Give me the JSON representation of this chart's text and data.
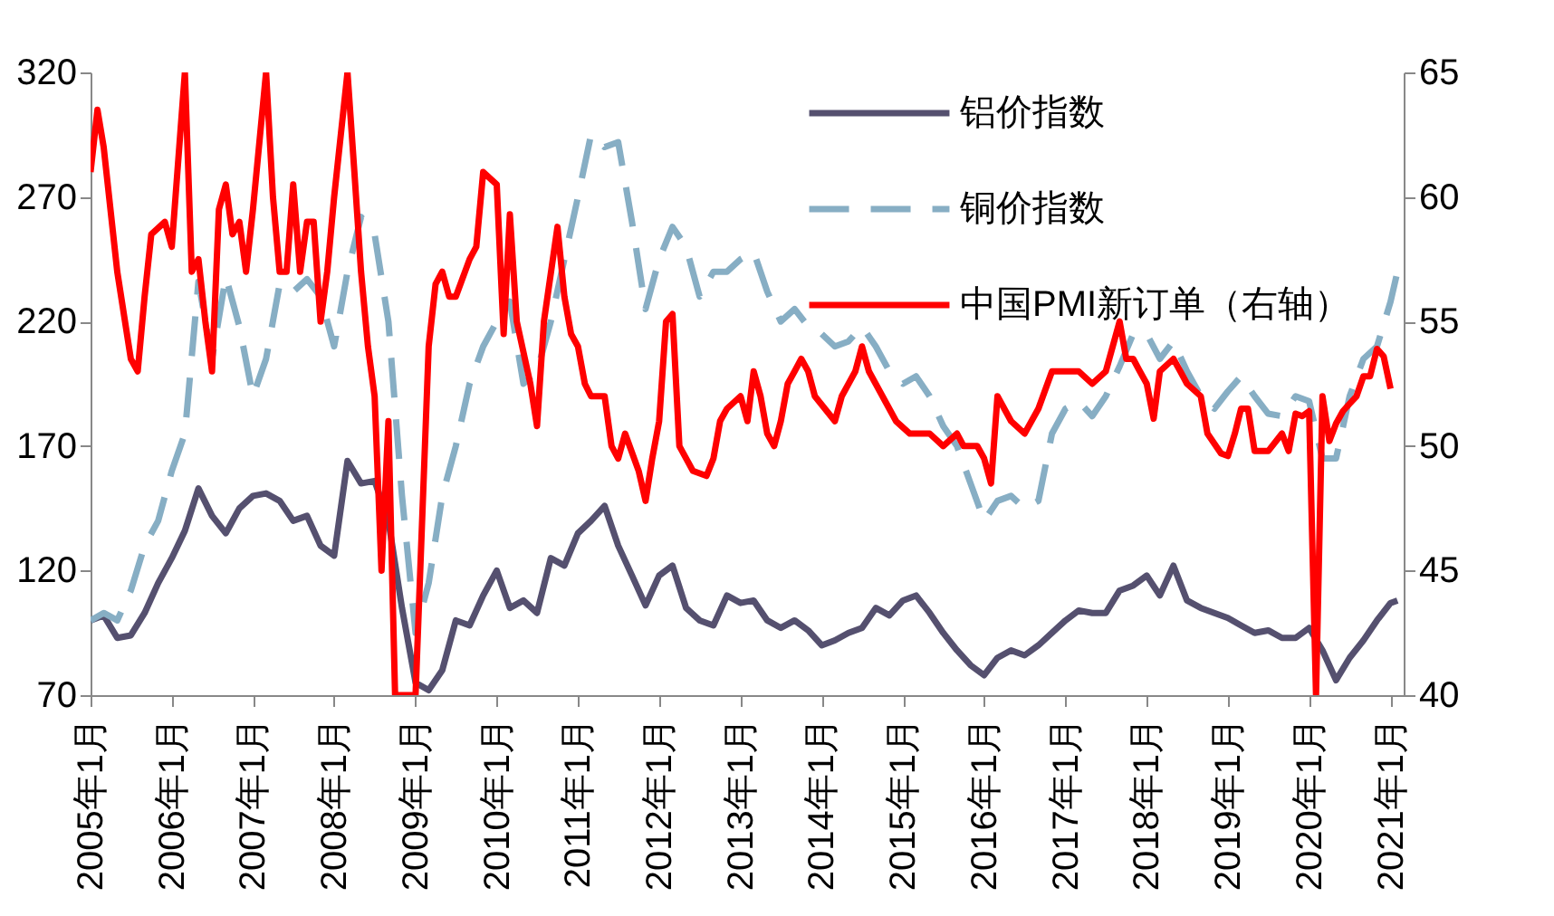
{
  "chart_data": {
    "type": "line",
    "xlim": [
      "2005-01",
      "2021-03"
    ],
    "xticks": [
      {
        "value": "2005-01",
        "label": "2005年1月"
      },
      {
        "value": "2006-01",
        "label": "2006年1月"
      },
      {
        "value": "2007-01",
        "label": "2007年1月"
      },
      {
        "value": "2008-01",
        "label": "2008年1月"
      },
      {
        "value": "2009-01",
        "label": "2009年1月"
      },
      {
        "value": "2010-01",
        "label": "2010年1月"
      },
      {
        "value": "2011-01",
        "label": "2011年1月"
      },
      {
        "value": "2012-01",
        "label": "2012年1月"
      },
      {
        "value": "2013-01",
        "label": "2013年1月"
      },
      {
        "value": "2014-01",
        "label": "2014年1月"
      },
      {
        "value": "2015-01",
        "label": "2015年1月"
      },
      {
        "value": "2016-01",
        "label": "2016年1月"
      },
      {
        "value": "2017-01",
        "label": "2017年1月"
      },
      {
        "value": "2018-01",
        "label": "2018年1月"
      },
      {
        "value": "2019-01",
        "label": "2019年1月"
      },
      {
        "value": "2020-01",
        "label": "2020年1月"
      },
      {
        "value": "2021-01",
        "label": "2021年1月"
      }
    ],
    "ylim": [
      70,
      320
    ],
    "yticks": [
      70,
      120,
      170,
      220,
      270,
      320
    ],
    "y2lim": [
      40,
      65
    ],
    "y2ticks": [
      40,
      45,
      50,
      55,
      60,
      65
    ],
    "legend": "top right",
    "grid": false,
    "series": [
      {
        "name": "铝价指数",
        "color": "#55506f",
        "line_style": "solid",
        "x": [
          "2005-01",
          "2005-03",
          "2005-05",
          "2005-07",
          "2005-09",
          "2005-11",
          "2006-01",
          "2006-03",
          "2006-05",
          "2006-07",
          "2006-09",
          "2006-11",
          "2007-01",
          "2007-03",
          "2007-05",
          "2007-07",
          "2007-09",
          "2007-11",
          "2008-01",
          "2008-03",
          "2008-05",
          "2008-07",
          "2008-09",
          "2008-11",
          "2009-01",
          "2009-03",
          "2009-05",
          "2009-07",
          "2009-09",
          "2009-11",
          "2010-01",
          "2010-03",
          "2010-05",
          "2010-07",
          "2010-09",
          "2010-11",
          "2011-01",
          "2011-03",
          "2011-05",
          "2011-07",
          "2011-09",
          "2011-11",
          "2012-01",
          "2012-03",
          "2012-05",
          "2012-07",
          "2012-09",
          "2012-11",
          "2013-01",
          "2013-03",
          "2013-05",
          "2013-07",
          "2013-09",
          "2013-11",
          "2014-01",
          "2014-03",
          "2014-05",
          "2014-07",
          "2014-09",
          "2014-11",
          "2015-01",
          "2015-03",
          "2015-05",
          "2015-07",
          "2015-09",
          "2015-11",
          "2016-01",
          "2016-03",
          "2016-05",
          "2016-07",
          "2016-09",
          "2016-11",
          "2017-01",
          "2017-03",
          "2017-05",
          "2017-07",
          "2017-09",
          "2017-11",
          "2018-01",
          "2018-03",
          "2018-05",
          "2018-07",
          "2018-09",
          "2018-11",
          "2019-01",
          "2019-03",
          "2019-05",
          "2019-07",
          "2019-09",
          "2019-11",
          "2020-01",
          "2020-03",
          "2020-05",
          "2020-07",
          "2020-09",
          "2020-11",
          "2021-01",
          "2021-02"
        ],
        "values": [
          100,
          102,
          93,
          94,
          103,
          115,
          125,
          136,
          153,
          142,
          135,
          145,
          150,
          151,
          148,
          140,
          142,
          130,
          126,
          164,
          155,
          156,
          140,
          105,
          75,
          72,
          80,
          100,
          98,
          110,
          120,
          105,
          108,
          103,
          125,
          122,
          135,
          140,
          146,
          130,
          118,
          106,
          118,
          122,
          105,
          100,
          98,
          110,
          107,
          108,
          100,
          97,
          100,
          96,
          90,
          92,
          95,
          97,
          105,
          102,
          108,
          110,
          103,
          95,
          88,
          82,
          78,
          85,
          88,
          86,
          90,
          95,
          100,
          104,
          103,
          103,
          112,
          114,
          118,
          110,
          122,
          108,
          105,
          103,
          101,
          98,
          95,
          96,
          93,
          93,
          97,
          88,
          76,
          85,
          92,
          100,
          107,
          108
        ]
      },
      {
        "name": "铜价指数",
        "color": "#87aec4",
        "line_style": "dashed",
        "x": [
          "2005-01",
          "2005-03",
          "2005-05",
          "2005-07",
          "2005-09",
          "2005-11",
          "2006-01",
          "2006-03",
          "2006-05",
          "2006-07",
          "2006-09",
          "2006-11",
          "2007-01",
          "2007-03",
          "2007-05",
          "2007-07",
          "2007-09",
          "2007-11",
          "2008-01",
          "2008-03",
          "2008-05",
          "2008-07",
          "2008-09",
          "2008-11",
          "2009-01",
          "2009-03",
          "2009-05",
          "2009-07",
          "2009-09",
          "2009-11",
          "2010-01",
          "2010-03",
          "2010-05",
          "2010-07",
          "2010-09",
          "2010-11",
          "2011-01",
          "2011-03",
          "2011-05",
          "2011-07",
          "2011-09",
          "2011-11",
          "2012-01",
          "2012-03",
          "2012-05",
          "2012-07",
          "2012-09",
          "2012-11",
          "2013-01",
          "2013-03",
          "2013-05",
          "2013-07",
          "2013-09",
          "2013-11",
          "2014-01",
          "2014-03",
          "2014-05",
          "2014-07",
          "2014-09",
          "2014-11",
          "2015-01",
          "2015-03",
          "2015-05",
          "2015-07",
          "2015-09",
          "2015-11",
          "2016-01",
          "2016-03",
          "2016-05",
          "2016-07",
          "2016-09",
          "2016-11",
          "2017-01",
          "2017-03",
          "2017-05",
          "2017-07",
          "2017-09",
          "2017-11",
          "2018-01",
          "2018-03",
          "2018-05",
          "2018-07",
          "2018-09",
          "2018-11",
          "2019-01",
          "2019-03",
          "2019-05",
          "2019-07",
          "2019-09",
          "2019-11",
          "2020-01",
          "2020-03",
          "2020-05",
          "2020-07",
          "2020-09",
          "2020-11",
          "2021-01",
          "2021-02"
        ],
        "values": [
          100,
          103,
          100,
          112,
          130,
          140,
          160,
          175,
          236,
          205,
          238,
          218,
          190,
          205,
          235,
          232,
          237,
          230,
          210,
          240,
          262,
          255,
          220,
          150,
          95,
          115,
          150,
          170,
          195,
          210,
          220,
          228,
          195,
          200,
          220,
          245,
          270,
          295,
          290,
          292,
          260,
          225,
          245,
          258,
          250,
          230,
          240,
          240,
          245,
          248,
          232,
          220,
          225,
          218,
          215,
          210,
          212,
          218,
          210,
          200,
          195,
          198,
          190,
          178,
          170,
          155,
          140,
          148,
          150,
          145,
          148,
          175,
          185,
          188,
          182,
          190,
          202,
          215,
          215,
          205,
          212,
          200,
          190,
          185,
          192,
          198,
          190,
          183,
          182,
          190,
          188,
          165,
          165,
          190,
          205,
          210,
          228,
          240
        ]
      },
      {
        "name": "中国PMI新订单（右轴）",
        "color": "#ff0000",
        "line_style": "solid",
        "axis": "y2",
        "x": [
          "2005-01",
          "2005-02",
          "2005-03",
          "2005-05",
          "2005-07",
          "2005-08",
          "2005-09",
          "2005-10",
          "2005-12",
          "2006-01",
          "2006-03",
          "2006-04",
          "2006-05",
          "2006-06",
          "2006-07",
          "2006-08",
          "2006-09",
          "2006-10",
          "2006-11",
          "2006-12",
          "2007-01",
          "2007-03",
          "2007-04",
          "2007-05",
          "2007-06",
          "2007-07",
          "2007-08",
          "2007-09",
          "2007-10",
          "2007-11",
          "2007-12",
          "2008-01",
          "2008-03",
          "2008-04",
          "2008-05",
          "2008-06",
          "2008-07",
          "2008-08",
          "2008-09",
          "2008-10",
          "2008-12",
          "2009-01",
          "2009-03",
          "2009-04",
          "2009-05",
          "2009-06",
          "2009-07",
          "2009-09",
          "2009-10",
          "2009-11",
          "2010-01",
          "2010-02",
          "2010-03",
          "2010-04",
          "2010-06",
          "2010-07",
          "2010-08",
          "2010-10",
          "2010-11",
          "2010-12",
          "2011-01",
          "2011-02",
          "2011-03",
          "2011-05",
          "2011-06",
          "2011-07",
          "2011-08",
          "2011-10",
          "2011-11",
          "2011-12",
          "2012-01",
          "2012-02",
          "2012-03",
          "2012-04",
          "2012-06",
          "2012-08",
          "2012-09",
          "2012-10",
          "2012-11",
          "2013-01",
          "2013-02",
          "2013-03",
          "2013-04",
          "2013-05",
          "2013-06",
          "2013-07",
          "2013-08",
          "2013-09",
          "2013-10",
          "2013-11",
          "2013-12",
          "2014-03",
          "2014-04",
          "2014-06",
          "2014-07",
          "2014-08",
          "2014-10",
          "2014-12",
          "2015-02",
          "2015-03",
          "2015-05",
          "2015-07",
          "2015-09",
          "2015-10",
          "2015-12",
          "2016-01",
          "2016-02",
          "2016-03",
          "2016-05",
          "2016-07",
          "2016-09",
          "2016-11",
          "2016-12",
          "2017-03",
          "2017-05",
          "2017-07",
          "2017-09",
          "2017-10",
          "2017-11",
          "2017-12",
          "2018-01",
          "2018-02",
          "2018-03",
          "2018-05",
          "2018-06",
          "2018-07",
          "2018-09",
          "2018-10",
          "2018-12",
          "2019-01",
          "2019-02",
          "2019-03",
          "2019-04",
          "2019-05",
          "2019-07",
          "2019-09",
          "2019-10",
          "2019-11",
          "2019-12",
          "2020-01",
          "2020-02",
          "2020-03",
          "2020-04",
          "2020-05",
          "2020-06",
          "2020-07",
          "2020-08",
          "2020-09",
          "2020-10",
          "2020-11",
          "2020-12",
          "2021-01"
        ],
        "values": [
          61,
          63.5,
          62,
          57,
          53.5,
          53,
          56,
          58.5,
          59,
          58,
          65,
          57,
          57.5,
          55,
          53,
          59.5,
          60.5,
          58.5,
          59,
          57,
          59.5,
          65,
          60,
          57,
          57,
          60.5,
          57,
          59,
          59,
          55,
          57,
          60,
          65,
          61,
          57,
          54,
          52,
          45,
          51,
          40,
          40,
          40,
          54,
          56.5,
          57,
          56,
          56,
          57.5,
          58,
          61,
          60.5,
          54.5,
          59.3,
          55,
          52.5,
          50.8,
          55,
          58.8,
          56,
          54.5,
          54,
          52.5,
          52,
          52,
          50,
          49.5,
          50.5,
          49,
          47.8,
          49.5,
          51,
          55,
          55.3,
          50,
          49,
          48.8,
          49.5,
          51,
          51.5,
          52,
          51,
          53,
          52,
          50.5,
          50,
          51,
          52.5,
          53,
          53.5,
          53,
          52,
          51,
          52,
          53,
          54,
          53,
          52,
          51,
          50.5,
          50.5,
          50.5,
          50,
          50.5,
          50,
          50,
          49.5,
          48.5,
          52,
          51,
          50.5,
          51.5,
          53,
          53,
          53,
          52.5,
          53,
          55,
          53.5,
          53.5,
          53,
          52.5,
          51.1,
          53,
          53.5,
          53,
          52.5,
          52,
          50.5,
          49.7,
          49.6,
          50.5,
          51.5,
          51.5,
          49.8,
          49.8,
          50.5,
          49.8,
          51.3,
          51.2,
          51.4,
          40,
          52,
          50.2,
          50.9,
          51.4,
          51.7,
          52,
          52.8,
          52.8,
          53.9,
          53.6,
          52.3
        ]
      }
    ]
  }
}
